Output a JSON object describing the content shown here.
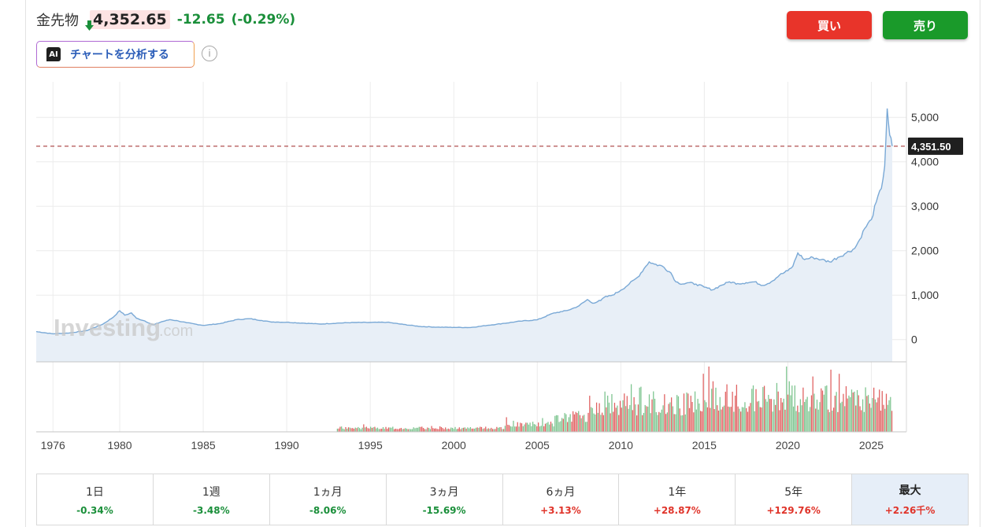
{
  "header": {
    "name": "金先物",
    "price": "4,352.65",
    "change": "-12.65",
    "change_pct": "(-0.29%)",
    "direction_icon": "arrow-down-icon",
    "direction_color": "#1a8f3a"
  },
  "ai_button": {
    "icon_text": "AI",
    "label": "チャートを分析する"
  },
  "info_icon": "i",
  "trade": {
    "buy_label": "買い",
    "sell_label": "売り",
    "buy_color": "#e8342a",
    "sell_color": "#1a9a2a"
  },
  "watermark": {
    "brand": "Investing",
    "suffix": ".com"
  },
  "chart_data": {
    "type": "area",
    "x": [
      1975.0,
      1976.0,
      1977.0,
      1978.0,
      1979.0,
      1979.6,
      1980.0,
      1980.3,
      1980.7,
      1981.0,
      1981.5,
      1982.0,
      1982.5,
      1983.0,
      1983.5,
      1984.0,
      1985.0,
      1986.0,
      1987.0,
      1987.8,
      1988.5,
      1989.0,
      1990.0,
      1991.0,
      1992.0,
      1993.0,
      1994.0,
      1995.0,
      1996.0,
      1997.0,
      1998.0,
      1999.0,
      2000.0,
      2001.0,
      2002.0,
      2003.0,
      2004.0,
      2005.0,
      2006.0,
      2006.5,
      2007.0,
      2007.5,
      2008.0,
      2008.3,
      2008.8,
      2009.0,
      2009.5,
      2010.0,
      2010.5,
      2011.0,
      2011.4,
      2011.7,
      2012.0,
      2012.5,
      2013.0,
      2013.3,
      2013.7,
      2014.0,
      2014.5,
      2015.0,
      2015.5,
      2016.0,
      2016.5,
      2017.0,
      2017.5,
      2018.0,
      2018.5,
      2019.0,
      2019.5,
      2020.0,
      2020.3,
      2020.6,
      2021.0,
      2021.5,
      2022.0,
      2022.5,
      2023.0,
      2023.5,
      2024.0,
      2024.3,
      2024.6,
      2025.0,
      2025.3,
      2025.6,
      2025.8,
      2025.95,
      2026.1,
      2026.25
    ],
    "y": [
      180,
      130,
      150,
      200,
      350,
      500,
      650,
      550,
      600,
      480,
      420,
      330,
      400,
      450,
      420,
      380,
      320,
      360,
      450,
      470,
      430,
      400,
      390,
      370,
      350,
      370,
      385,
      385,
      390,
      340,
      295,
      280,
      275,
      272,
      320,
      365,
      415,
      445,
      600,
      630,
      680,
      760,
      900,
      820,
      880,
      950,
      1000,
      1110,
      1250,
      1400,
      1600,
      1750,
      1700,
      1650,
      1500,
      1300,
      1250,
      1280,
      1250,
      1180,
      1120,
      1220,
      1300,
      1260,
      1280,
      1300,
      1220,
      1300,
      1450,
      1550,
      1650,
      1950,
      1800,
      1850,
      1800,
      1750,
      1850,
      1950,
      2050,
      2250,
      2500,
      2700,
      3100,
      3400,
      3900,
      5200,
      4600,
      4352
    ],
    "xticks": [
      "1976",
      "1980",
      "1985",
      "1990",
      "1995",
      "2000",
      "2005",
      "2010",
      "2015",
      "2020",
      "2025"
    ],
    "xtick_values": [
      1976,
      1980,
      1985,
      1990,
      1995,
      2000,
      2005,
      2010,
      2015,
      2020,
      2025
    ],
    "yticks": [
      "5,000",
      "4,000",
      "3,000",
      "2,000",
      "1,000",
      "0"
    ],
    "ytick_values": [
      5000,
      4000,
      3000,
      2000,
      1000,
      0
    ],
    "ylim": [
      -500,
      5800
    ],
    "xlim": [
      1975.0,
      2027.1
    ],
    "current_price_label": "4,351.50",
    "current_price": 4351.5,
    "line_color": "#7aa9d6",
    "fill_color": "#e8eff7",
    "grid": true,
    "volume": {
      "start_year": 1993.0,
      "end_year": 2026.25,
      "bar_width_years": 0.083,
      "ranges": [
        {
          "from": 1993.0,
          "to": 2003.0,
          "min": 0.04,
          "max": 0.08
        },
        {
          "from": 2003.0,
          "to": 2006.0,
          "min": 0.08,
          "max": 0.16
        },
        {
          "from": 2006.0,
          "to": 2008.0,
          "min": 0.15,
          "max": 0.33
        },
        {
          "from": 2008.0,
          "to": 2015.0,
          "min": 0.25,
          "max": 0.62
        },
        {
          "from": 2015.0,
          "to": 2021.0,
          "min": 0.3,
          "max": 0.78
        },
        {
          "from": 2021.0,
          "to": 2026.25,
          "min": 0.3,
          "max": 0.72
        }
      ],
      "up_color": "#7cc48e",
      "down_color": "#e06060"
    }
  },
  "periods": [
    {
      "label": "1日",
      "value": "-0.34%",
      "dir": "neg"
    },
    {
      "label": "1週",
      "value": "-3.48%",
      "dir": "neg"
    },
    {
      "label": "1ヵ月",
      "value": "-8.06%",
      "dir": "neg"
    },
    {
      "label": "3ヵ月",
      "value": "-15.69%",
      "dir": "neg"
    },
    {
      "label": "6ヵ月",
      "value": "+3.13%",
      "dir": "pos"
    },
    {
      "label": "1年",
      "value": "+28.87%",
      "dir": "pos"
    },
    {
      "label": "5年",
      "value": "+129.76%",
      "dir": "pos"
    },
    {
      "label": "最大",
      "value": "+2.26千%",
      "dir": "pos",
      "active": true
    }
  ]
}
